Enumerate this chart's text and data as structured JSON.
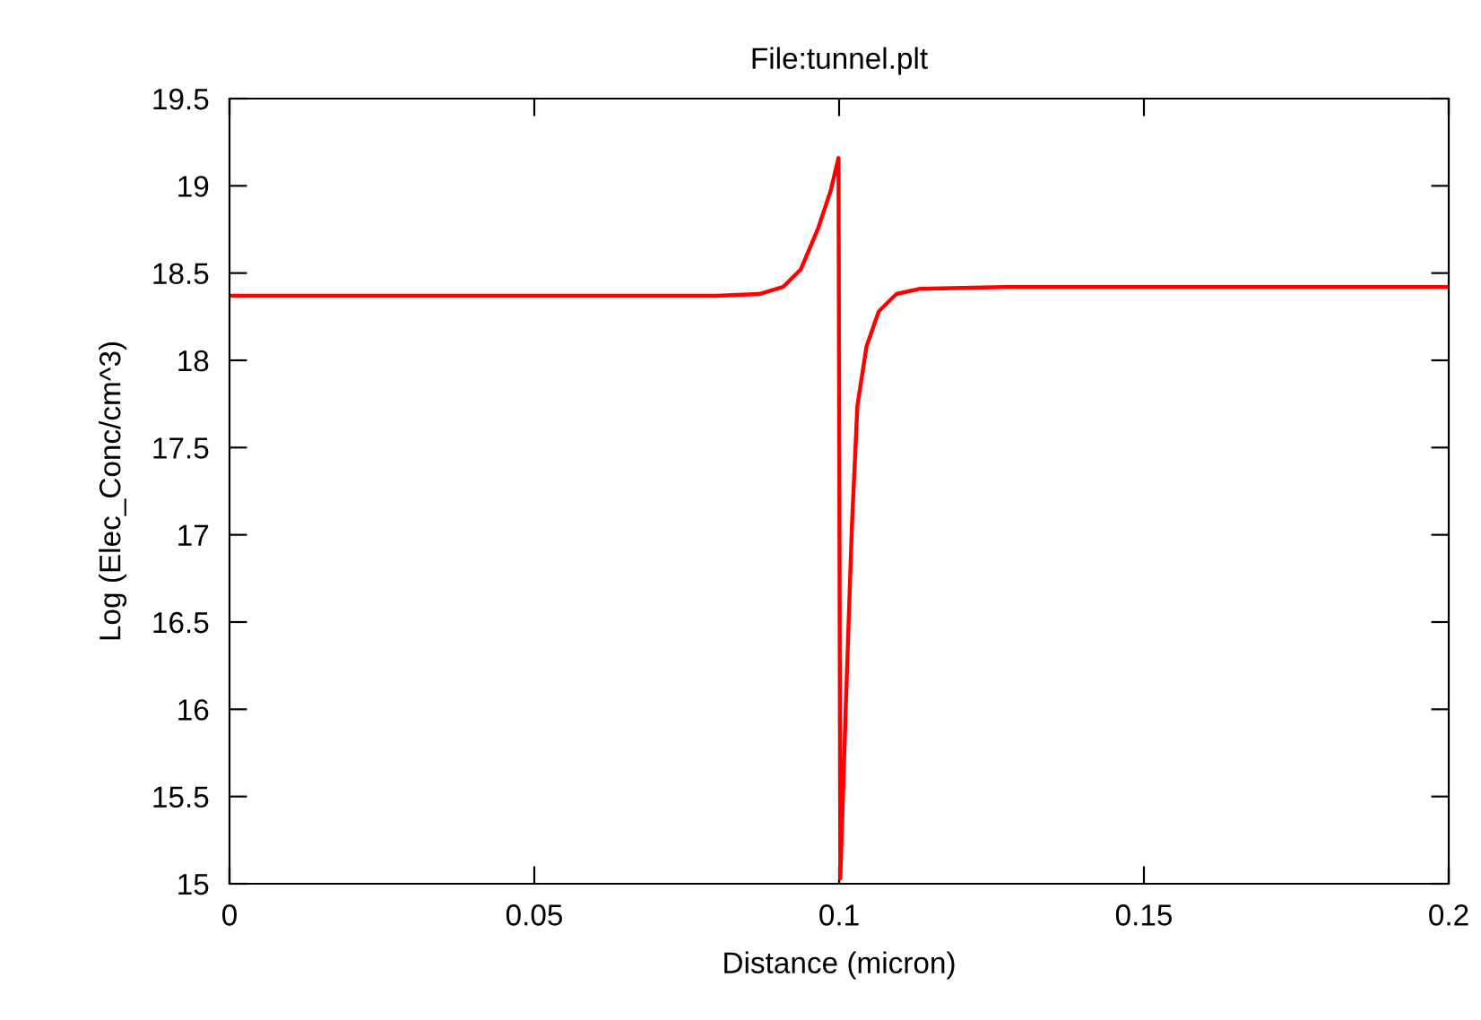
{
  "chart_data": {
    "type": "line",
    "title": "File:tunnel.plt",
    "xlabel": "Distance (micron)",
    "ylabel": "Log (Elec_Conc/cm^3)",
    "xlim": [
      0,
      0.2
    ],
    "ylim": [
      15,
      19.5
    ],
    "xticks": [
      0,
      0.05,
      0.1,
      0.15,
      0.2
    ],
    "yticks": [
      15,
      15.5,
      16,
      16.5,
      17,
      17.5,
      18,
      18.5,
      19,
      19.5
    ],
    "grid": false,
    "series": [
      {
        "color": "#ff0000",
        "x": [
          0,
          0.05,
          0.08,
          0.0869,
          0.0908,
          0.0937,
          0.0966,
          0.0986,
          0.0999,
          0.1002,
          0.1011,
          0.1021,
          0.103,
          0.1045,
          0.1065,
          0.1094,
          0.1133,
          0.127,
          0.2
        ],
        "values": [
          18.37,
          18.37,
          18.37,
          18.38,
          18.42,
          18.52,
          18.76,
          18.97,
          19.16,
          15.03,
          16.02,
          17.05,
          17.74,
          18.08,
          18.28,
          18.38,
          18.41,
          18.42,
          18.42
        ]
      }
    ]
  }
}
